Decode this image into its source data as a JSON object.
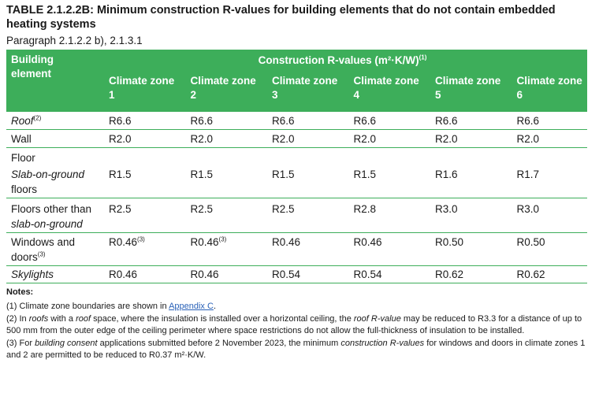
{
  "title": {
    "number": "TABLE 2.1.2.2B:",
    "description": "Minimum construction R-values for building elements that do not contain embedded heating systems"
  },
  "paragraph_ref": "Paragraph 2.1.2.2 b), 2.1.3.1",
  "table": {
    "col_building_element": "Building element",
    "col_group": "Construction R-values (m²·K/W)",
    "col_group_note": "(1)",
    "zones": [
      "Climate zone 1",
      "Climate zone 2",
      "Climate zone 3",
      "Climate zone 4",
      "Climate zone 5",
      "Climate zone 6"
    ],
    "rows": {
      "roof": {
        "label": "Roof",
        "note": "(2)",
        "values": [
          "R6.6",
          "R6.6",
          "R6.6",
          "R6.6",
          "R6.6",
          "R6.6"
        ]
      },
      "wall": {
        "label": "Wall",
        "values": [
          "R2.0",
          "R2.0",
          "R2.0",
          "R2.0",
          "R2.0",
          "R2.0"
        ]
      },
      "floor": {
        "label": "Floor"
      },
      "slab": {
        "label_italic": "Slab-on-ground",
        "label_rest": " floors",
        "values": [
          "R1.5",
          "R1.5",
          "R1.5",
          "R1.5",
          "R1.6",
          "R1.7"
        ]
      },
      "floors_other": {
        "label_plain": "Floors other than ",
        "label_italic": "slab-on-ground",
        "values": [
          "R2.5",
          "R2.5",
          "R2.5",
          "R2.8",
          "R3.0",
          "R3.0"
        ]
      },
      "windows": {
        "label": "Windows and doors",
        "note": "(3)",
        "values": [
          "R0.46",
          "R0.46",
          "R0.46",
          "R0.46",
          "R0.50",
          "R0.50"
        ],
        "value_note": "(3)"
      },
      "skylights": {
        "label": "Skylights",
        "values": [
          "R0.46",
          "R0.46",
          "R0.54",
          "R0.54",
          "R0.62",
          "R0.62"
        ]
      }
    }
  },
  "notes": {
    "heading": "Notes:",
    "n1_text": "(1) Climate zone boundaries are shown in ",
    "n1_link": "Appendix C",
    "n1_end": ".",
    "n2_a": "(2) In ",
    "n2_roofs": "roofs",
    "n2_b": " with a ",
    "n2_roof": "roof",
    "n2_c": " space, where the insulation is installed over a horizontal ceiling, the ",
    "n2_rvalue": "roof R-value",
    "n2_d": " may be reduced to R3.3 for a distance of up to 500 mm from the outer edge of the ceiling perimeter where space restrictions do not allow the full-thickness of insulation to be installed.",
    "n3_a": "(3) For ",
    "n3_bc": "building consent",
    "n3_b": " applications submitted before 2 November 2023, the minimum ",
    "n3_cr": "construction R-values",
    "n3_c": " for windows and doors in climate zones 1 and 2 are permitted to be reduced to R0.37 m²·K/W."
  },
  "colors": {
    "accent": "#3dae5a",
    "link": "#2a62b8"
  }
}
